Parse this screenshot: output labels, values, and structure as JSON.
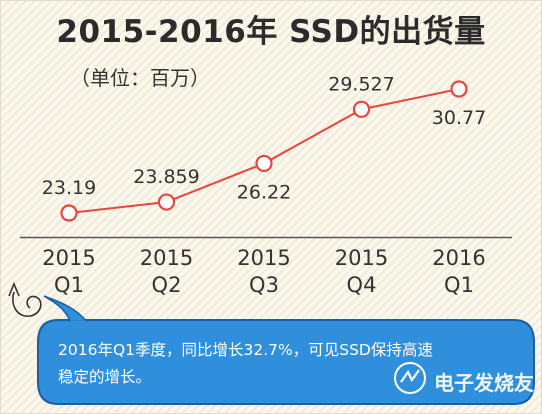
{
  "chart_data": {
    "type": "line",
    "title": "2015-2016年 SSD的出货量",
    "subtitle": "（单位：百万）",
    "categories": [
      [
        "2015",
        "Q1"
      ],
      [
        "2015",
        "Q2"
      ],
      [
        "2015",
        "Q3"
      ],
      [
        "2015",
        "Q4"
      ],
      [
        "2016",
        "Q1"
      ]
    ],
    "values": [
      23.19,
      23.859,
      26.22,
      29.527,
      30.77
    ],
    "data_labels": [
      "23.19",
      "23.859",
      "26.22",
      "29.527",
      "30.77"
    ],
    "grid": false,
    "legend": "none",
    "line_color": "#e8453c",
    "marker_fill": "#ffffff"
  },
  "note": {
    "text_line1": "2016年Q1季度，同比增长32.7%，可见SSD保持高速",
    "text_line2": "稳定的增长。"
  },
  "watermark": "电子发烧友",
  "colors": {
    "background": "#fdf8ee",
    "stripe": "#f0ebd8",
    "bubble": "#2f8fdc",
    "bubble_border": "#1c5ea6"
  }
}
